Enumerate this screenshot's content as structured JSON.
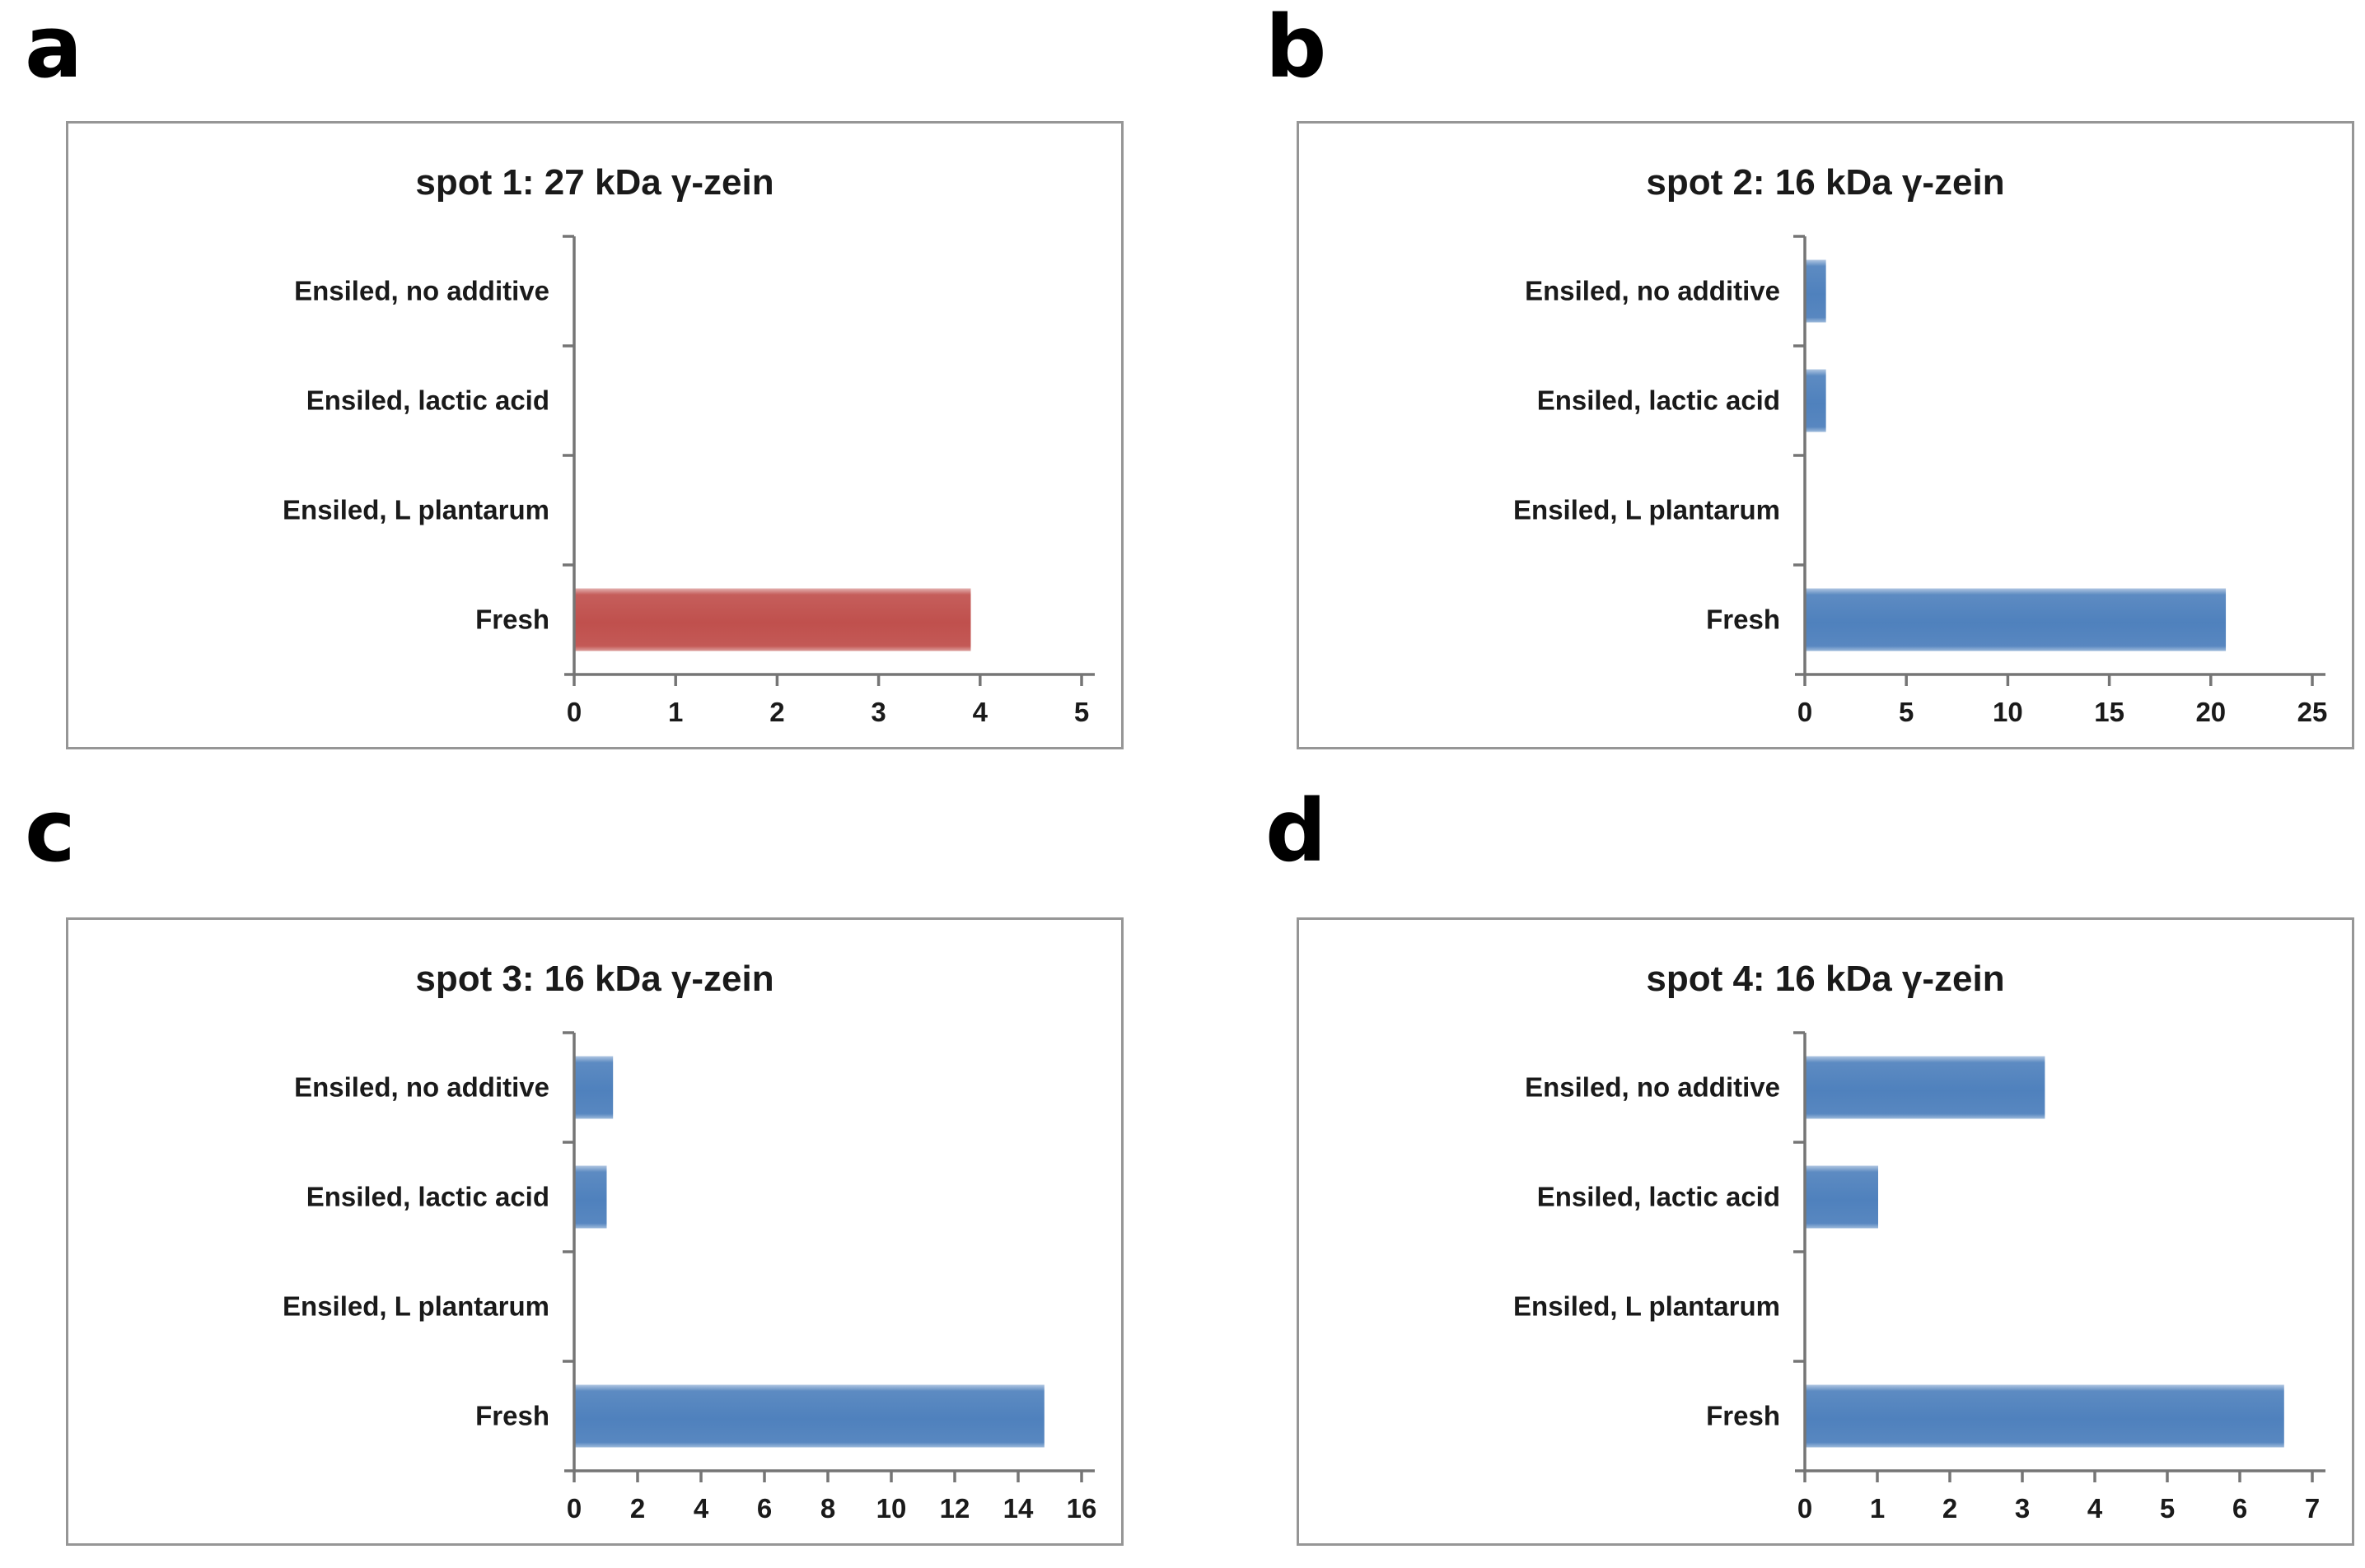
{
  "style": {
    "bar_blue": "#4F81BD",
    "bar_red": "#C0504D",
    "axis_color": "#757575",
    "box_border_color": "#969696",
    "text_color": "#1A1A1A"
  },
  "chart_data": [
    {
      "panel": "a",
      "type": "bar",
      "orientation": "horizontal",
      "title": "spot 1: 27 kDa γ-zein",
      "categories": [
        "Ensiled, no additive",
        "Ensiled, lactic acid",
        "Ensiled, L plantarum",
        "Fresh"
      ],
      "values": [
        0,
        0,
        0,
        3.9
      ],
      "xlim": [
        0,
        5
      ],
      "xticks": [
        0,
        1,
        2,
        3,
        4,
        5
      ],
      "bar_color": "#C0504D",
      "grid": false,
      "legend": false
    },
    {
      "panel": "b",
      "type": "bar",
      "orientation": "horizontal",
      "title": "spot 2: 16 kDa γ-zein",
      "categories": [
        "Ensiled, no additive",
        "Ensiled, lactic acid",
        "Ensiled, L plantarum",
        "Fresh"
      ],
      "values": [
        1.0,
        1.0,
        0,
        20.7
      ],
      "xlim": [
        0,
        25
      ],
      "xticks": [
        0,
        5,
        10,
        15,
        20,
        25
      ],
      "bar_color": "#4F81BD",
      "grid": false,
      "legend": false
    },
    {
      "panel": "c",
      "type": "bar",
      "orientation": "horizontal",
      "title": "spot 3: 16 kDa γ-zein",
      "categories": [
        "Ensiled, no additive",
        "Ensiled, lactic acid",
        "Ensiled, L plantarum",
        "Fresh"
      ],
      "values": [
        1.2,
        1.0,
        0,
        14.8
      ],
      "xlim": [
        0,
        16
      ],
      "xticks": [
        0,
        2,
        4,
        6,
        8,
        10,
        12,
        14,
        16
      ],
      "bar_color": "#4F81BD",
      "grid": false,
      "legend": false
    },
    {
      "panel": "d",
      "type": "bar",
      "orientation": "horizontal",
      "title": "spot 4: 16 kDa γ-zein",
      "categories": [
        "Ensiled, no additive",
        "Ensiled, lactic acid",
        "Ensiled, L plantarum",
        "Fresh"
      ],
      "values": [
        3.3,
        1.0,
        0,
        6.6
      ],
      "xlim": [
        0,
        7
      ],
      "xticks": [
        0,
        1,
        2,
        3,
        4,
        5,
        6,
        7
      ],
      "bar_color": "#4F81BD",
      "grid": false,
      "legend": false
    }
  ]
}
